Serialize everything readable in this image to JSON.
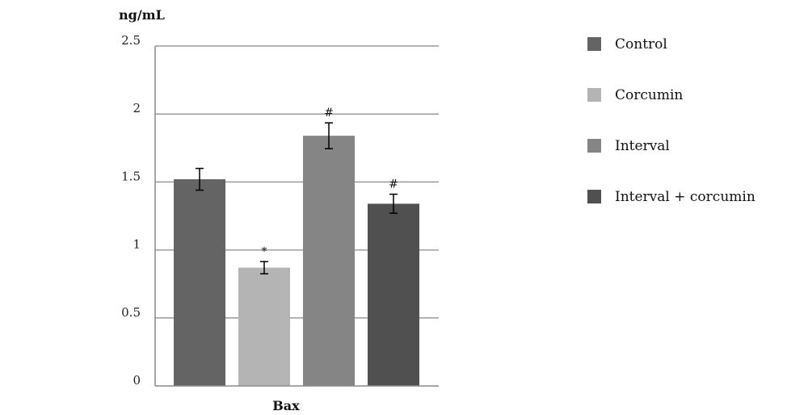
{
  "chart_data": {
    "type": "bar",
    "title": "",
    "ylabel": "ng/mL",
    "xlabel": "Bax",
    "ylim": [
      0,
      2.5
    ],
    "yticks": [
      "0",
      "0.5",
      "1",
      "1.5",
      "2",
      "2.5"
    ],
    "ytick_values": [
      0,
      0.5,
      1,
      1.5,
      2,
      2.5
    ],
    "grid": true,
    "legend_position": "right",
    "series": [
      {
        "name": "Control",
        "value": 1.52,
        "error": 0.08,
        "annotation": "",
        "color": "#646464"
      },
      {
        "name": "Corcumin",
        "value": 0.87,
        "error": 0.045,
        "annotation": "*",
        "color": "#b4b4b4"
      },
      {
        "name": "Interval",
        "value": 1.84,
        "error": 0.095,
        "annotation": "#",
        "color": "#858585"
      },
      {
        "name": "Interval + corcumin",
        "value": 1.34,
        "error": 0.07,
        "annotation": "#",
        "color": "#505050"
      }
    ]
  }
}
